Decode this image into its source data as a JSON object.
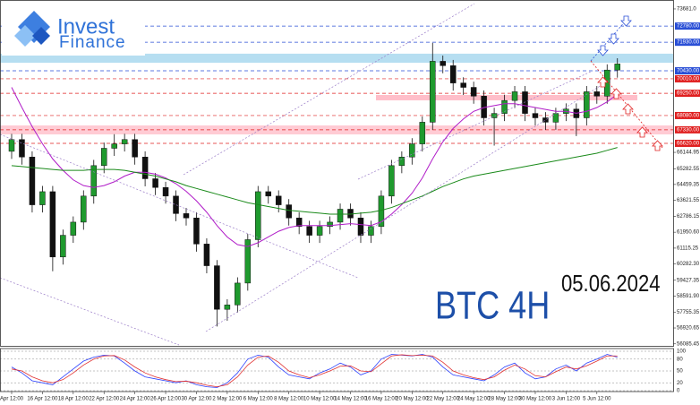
{
  "logo": {
    "line1": "Invest",
    "line2": "Finance"
  },
  "chart_data": [
    {
      "type": "candlestick",
      "annotations": [
        "BTC 4H",
        "05.06.2024"
      ],
      "categories": [
        "Apr 12:00",
        null,
        null,
        "16 Apr 12:00",
        null,
        null,
        "18 Apr 12:00",
        null,
        null,
        "22 Apr 12:00",
        null,
        null,
        "24 Apr 12:00",
        null,
        null,
        "26 Apr 12:00",
        null,
        null,
        "30 Apr 12:00",
        null,
        null,
        "2 May 12:00",
        null,
        null,
        "6 May 12:00",
        null,
        null,
        "8 May 12:00",
        null,
        null,
        "10 May 12:00",
        null,
        null,
        "14 May 12:00",
        null,
        null,
        "16 May 12:00",
        null,
        null,
        "20 May 12:00",
        null,
        null,
        "22 May 12:00",
        null,
        null,
        "24 May 12:00",
        null,
        null,
        "28 May 12:00",
        null,
        null,
        "30 May 12:00",
        null,
        null,
        "3 Jun 12:00",
        null,
        null,
        "5 Jun 12:00",
        null,
        null
      ],
      "open": [
        66200,
        66820,
        65900,
        63390,
        64080,
        60650,
        61790,
        62480,
        63850,
        65450,
        66360,
        66590,
        66820,
        65900,
        64760,
        64300,
        63850,
        62930,
        62700,
        61330,
        60190,
        57900,
        58130,
        59280,
        61560,
        64080,
        63850,
        63390,
        62700,
        62250,
        61790,
        62250,
        62480,
        63160,
        62700,
        61790,
        62250,
        63850,
        65450,
        65900,
        66590,
        67730,
        70930,
        70700,
        69790,
        69560,
        69100,
        67960,
        68190,
        68870,
        69330,
        68190,
        67960,
        67730,
        68190,
        68420,
        67960,
        69330,
        69100,
        70470
      ],
      "high": [
        67120,
        67120,
        66200,
        64380,
        64380,
        62090,
        62780,
        64150,
        65750,
        66660,
        67100,
        67120,
        67120,
        66200,
        65060,
        64600,
        64150,
        63230,
        63000,
        61630,
        60490,
        58430,
        59580,
        61860,
        64380,
        64380,
        64150,
        63690,
        63000,
        62550,
        62550,
        62780,
        63460,
        63460,
        63000,
        62550,
        64150,
        65750,
        66200,
        66890,
        68030,
        71900,
        71230,
        71000,
        70090,
        69860,
        69400,
        68490,
        69170,
        69630,
        69630,
        68490,
        68260,
        68490,
        68720,
        68720,
        69630,
        69630,
        70770,
        71090
      ],
      "low": [
        65800,
        65500,
        62990,
        62990,
        59900,
        60250,
        61390,
        62080,
        63450,
        65050,
        65960,
        66190,
        65500,
        64360,
        63900,
        63450,
        62530,
        62300,
        60930,
        59790,
        57000,
        57300,
        57730,
        58880,
        61160,
        63450,
        62990,
        62300,
        61850,
        61390,
        61390,
        61850,
        62080,
        62300,
        61390,
        61390,
        61850,
        63450,
        65050,
        65500,
        66190,
        67330,
        70300,
        69390,
        69160,
        68700,
        67560,
        66500,
        67790,
        68470,
        67790,
        67560,
        67330,
        67330,
        67790,
        67000,
        67560,
        68700,
        68700,
        70070
      ],
      "close": [
        66820,
        65900,
        63390,
        64080,
        60650,
        61790,
        62480,
        63850,
        65450,
        66360,
        66590,
        66820,
        65900,
        64760,
        64300,
        63850,
        62930,
        62700,
        61330,
        60190,
        57900,
        58130,
        59280,
        61560,
        64080,
        63850,
        63390,
        62700,
        62250,
        61790,
        62250,
        62480,
        63160,
        62700,
        61790,
        62250,
        63850,
        65450,
        65900,
        66590,
        67730,
        70930,
        70700,
        69790,
        69560,
        69100,
        67960,
        68190,
        68870,
        69330,
        68190,
        67960,
        67730,
        68190,
        68420,
        67960,
        69330,
        69100,
        70470,
        70790
      ],
      "up_color": "#1f9a2e",
      "down_color": "#111111",
      "overlays": [
        {
          "color": "#b01cc8",
          "values": [
            69560,
            68500,
            67500,
            66600,
            65800,
            65200,
            64700,
            64400,
            64300,
            64400,
            64600,
            64900,
            65100,
            65100,
            65000,
            64800,
            64500,
            64100,
            63600,
            63000,
            62300,
            61700,
            61300,
            61200,
            61400,
            61700,
            62000,
            62200,
            62300,
            62300,
            62300,
            62300,
            62350,
            62400,
            62350,
            62300,
            62500,
            62900,
            63400,
            64000,
            64800,
            65800,
            66700,
            67400,
            67900,
            68300,
            68500,
            68600,
            68700,
            68700,
            68600,
            68500,
            68400,
            68300,
            68300,
            68200,
            68300,
            68500,
            68800,
            69200
          ]
        },
        {
          "color": "#1a8a1a",
          "values": [
            65450,
            65400,
            65350,
            65300,
            65250,
            65200,
            65200,
            65200,
            65250,
            65250,
            65250,
            65200,
            65100,
            65000,
            64900,
            64750,
            64600,
            64400,
            64250,
            64100,
            63950,
            63800,
            63650,
            63500,
            63400,
            63300,
            63200,
            63100,
            63050,
            63000,
            62950,
            62900,
            62900,
            62900,
            62950,
            63000,
            63100,
            63250,
            63450,
            63650,
            63850,
            64100,
            64350,
            64550,
            64750,
            64900,
            65000,
            65100,
            65200,
            65300,
            65400,
            65500,
            65600,
            65700,
            65800,
            65900,
            66000,
            66100,
            66250,
            66400
          ]
        }
      ],
      "zones": [
        {
          "from": 70855,
          "to": 71330,
          "color": "#a9d8ef"
        },
        {
          "from": 68880,
          "to": 69160,
          "color": "#ffb3c0"
        },
        {
          "from": 67090,
          "to": 67560,
          "color": "#ffc2cc"
        }
      ],
      "levels": [
        {
          "value": 72780,
          "label": "72780.00",
          "color": "#2a4fd6"
        },
        {
          "value": 71930,
          "label": "71930.00",
          "color": "#2a4fd6"
        },
        {
          "value": 70430,
          "label": "70430.00",
          "color": "#2a4fd6"
        },
        {
          "value": 70010,
          "label": "70010.00",
          "color": "#e02020"
        },
        {
          "value": 69250,
          "label": "69250.00",
          "color": "#e02020"
        },
        {
          "value": 68080,
          "label": "68080.00",
          "color": "#e02020"
        },
        {
          "value": 67330,
          "label": "67330.00",
          "color": "#e02020"
        },
        {
          "value": 66620,
          "label": "66620.00",
          "color": "#e02020"
        }
      ],
      "ylim": [
        55980,
        74150
      ],
      "yticks": [
        {
          "value": 73681,
          "label": "73681.0"
        },
        {
          "value": 66144.95,
          "label": "66144.95"
        },
        {
          "value": 65282.55,
          "label": "65282.55"
        },
        {
          "value": 64459.35,
          "label": "64459.35"
        },
        {
          "value": 63621.55,
          "label": "63621.55"
        },
        {
          "value": 62786.15,
          "label": "62786.15"
        },
        {
          "value": 61950.6,
          "label": "61950.60"
        },
        {
          "value": 61115.25,
          "label": "61115.25"
        },
        {
          "value": 60282.3,
          "label": "60282.30"
        },
        {
          "value": 59427.35,
          "label": "59427.35"
        },
        {
          "value": 58591.9,
          "label": "58591.90"
        },
        {
          "value": 57755.35,
          "label": "57755.35"
        },
        {
          "value": 56920.65,
          "label": "56920.65"
        },
        {
          "value": 56085.45,
          "label": "56085.45"
        }
      ]
    },
    {
      "type": "line",
      "series": [
        {
          "color": "#2a3fff",
          "values": [
            60,
            45,
            25,
            20,
            15,
            35,
            55,
            75,
            85,
            90,
            88,
            70,
            50,
            35,
            30,
            25,
            20,
            25,
            15,
            10,
            8,
            20,
            45,
            80,
            90,
            85,
            60,
            40,
            35,
            30,
            45,
            55,
            70,
            60,
            40,
            50,
            80,
            92,
            90,
            88,
            92,
            85,
            60,
            40,
            35,
            30,
            25,
            40,
            60,
            70,
            45,
            30,
            35,
            55,
            65,
            50,
            70,
            80,
            92,
            85
          ]
        },
        {
          "color": "#e03030",
          "values": [
            55,
            50,
            35,
            25,
            20,
            28,
            45,
            65,
            80,
            88,
            89,
            78,
            60,
            45,
            35,
            28,
            23,
            24,
            20,
            14,
            10,
            15,
            35,
            65,
            85,
            88,
            72,
            50,
            40,
            33,
            40,
            50,
            62,
            63,
            50,
            48,
            68,
            88,
            91,
            89,
            90,
            88,
            72,
            50,
            40,
            33,
            28,
            35,
            52,
            65,
            55,
            38,
            35,
            48,
            60,
            55,
            63,
            75,
            88,
            88
          ]
        }
      ],
      "ylim": [
        0,
        100
      ],
      "yticks": [
        0,
        20,
        50,
        80,
        100
      ]
    }
  ]
}
